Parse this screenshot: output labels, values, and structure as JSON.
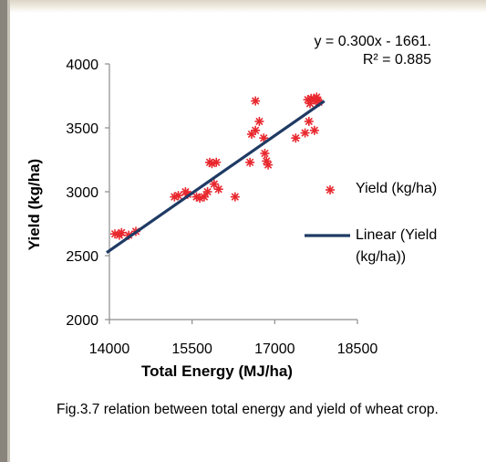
{
  "chart_data": {
    "type": "scatter",
    "xlabel": "Total Energy (MJ/ha)",
    "ylabel": "Yield (kg/ha)",
    "xlim": [
      14000,
      18500
    ],
    "ylim": [
      2000,
      4000
    ],
    "xticks": [
      "14000",
      "15500",
      "17000",
      "18500"
    ],
    "yticks": [
      "2000",
      "2500",
      "3000",
      "3500",
      "4000"
    ],
    "grid": false,
    "legend_position": "right",
    "series": [
      {
        "name": "Yield (kg/ha)",
        "marker": "asterisk",
        "color": "#e8282e",
        "points": [
          [
            14100,
            2670
          ],
          [
            14180,
            2660
          ],
          [
            14220,
            2680
          ],
          [
            14350,
            2660
          ],
          [
            14480,
            2690
          ],
          [
            15180,
            2960
          ],
          [
            15250,
            2970
          ],
          [
            15380,
            3000
          ],
          [
            15420,
            2980
          ],
          [
            15580,
            2960
          ],
          [
            15640,
            2950
          ],
          [
            15720,
            2960
          ],
          [
            15780,
            3000
          ],
          [
            15820,
            3230
          ],
          [
            15860,
            3220
          ],
          [
            15900,
            3060
          ],
          [
            15940,
            3230
          ],
          [
            15980,
            3020
          ],
          [
            16280,
            2960
          ],
          [
            16550,
            3230
          ],
          [
            16580,
            3450
          ],
          [
            16650,
            3480
          ],
          [
            16650,
            3710
          ],
          [
            16720,
            3550
          ],
          [
            16800,
            3420
          ],
          [
            16820,
            3300
          ],
          [
            16850,
            3240
          ],
          [
            16880,
            3210
          ],
          [
            17380,
            3420
          ],
          [
            17550,
            3460
          ],
          [
            17600,
            3720
          ],
          [
            17620,
            3550
          ],
          [
            17640,
            3690
          ],
          [
            17660,
            3730
          ],
          [
            17700,
            3720
          ],
          [
            17720,
            3480
          ],
          [
            17760,
            3740
          ],
          [
            17780,
            3710
          ],
          [
            17800,
            3700
          ]
        ]
      },
      {
        "name": "Linear (Yield (kg/ha))",
        "type": "line",
        "color": "#1f3a64",
        "x": [
          13950,
          17900
        ],
        "y": [
          2524,
          3709
        ]
      }
    ],
    "annotation": {
      "line1": "y = 0.300x - 1661.",
      "line2": "R² = 0.885"
    }
  },
  "caption": "Fig.3.7 relation between total energy  and yield of wheat crop."
}
